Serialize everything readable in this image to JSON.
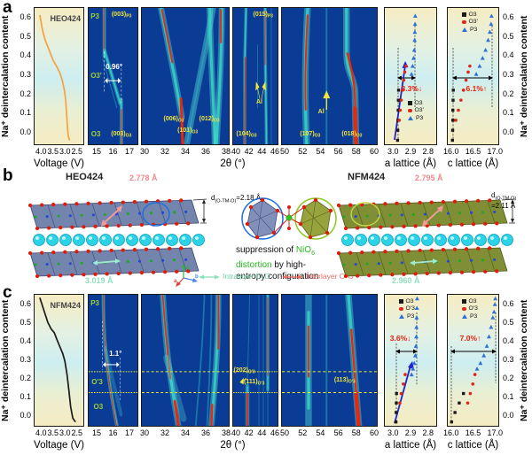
{
  "axis": {
    "na_content": "Na⁺ deintercalation content",
    "voltage": "Voltage (V)",
    "two_theta": "2θ (°)",
    "a_lattice": "a lattice (Å)",
    "c_lattice": "c lattice (Å)"
  },
  "panel_a": {
    "tag": "a",
    "yticks": [
      "0.6",
      "0.5",
      "0.4",
      "0.3",
      "0.2",
      "0.1",
      "0.0"
    ],
    "sample": "HEO424",
    "voltage_ticks": [
      "4.0",
      "3.5",
      "3.0",
      "2.5"
    ],
    "xrd1": {
      "ticks": [
        "15",
        "16",
        "17"
      ],
      "phase_top": "P3",
      "phase_mid": "O3'",
      "phase_bottom": "O3",
      "peak_top_main": "(003)",
      "peak_top_sub": "P3",
      "peak_bottom_main": "(003)",
      "peak_bottom_sub": "O3",
      "angle": "0.96°"
    },
    "xrd2": {
      "ticks": [
        "30",
        "32",
        "34",
        "36",
        "38"
      ],
      "peak1_main": "(006)",
      "peak1_sub": "O3",
      "peak2_main": "(101)",
      "peak2_sub": "O3",
      "peak3_main": "(012)",
      "peak3_sub": "O3"
    },
    "xrd3": {
      "ticks": [
        "40",
        "42",
        "44",
        "46"
      ],
      "peak_top_main": "(015)",
      "peak_top_sub": "P3",
      "al": "Al",
      "peak_bottom_main": "(104)",
      "peak_bottom_sub": "O3"
    },
    "xrd4": {
      "ticks": [
        "50",
        "52",
        "54",
        "56",
        "58",
        "60"
      ],
      "al": "Al",
      "peak_left_main": "(107)",
      "peak_left_sub": "O3",
      "peak_right_main": "(018)",
      "peak_right_sub": "O3"
    },
    "a_lat": {
      "ticks": [
        "3.0",
        "2.9",
        "2.8"
      ],
      "annotation": "3.3%↓",
      "legend": [
        "O3",
        "O3'",
        "P3"
      ]
    },
    "c_lat": {
      "ticks": [
        "16.0",
        "16.5",
        "17.0"
      ],
      "annotation": "6.1%↑",
      "legend": [
        "O3",
        "O3'",
        "P3"
      ]
    }
  },
  "panel_b": {
    "tag": "b",
    "heo": {
      "title": "HEO424",
      "interlayer_oo": "2.778 Å",
      "intralayer_oo": "3.019 Å",
      "d_main": "d",
      "d_sub": "(O-TM-O)",
      "d_val": "=2.18 Å"
    },
    "nfm": {
      "title": "NFM424",
      "interlayer_oo": "2.795 Å",
      "intralayer_oo": "2.960 Å",
      "d_main": "d",
      "d_sub": "(O-TM-O)",
      "d_val": "=2.11 Å"
    },
    "caption": {
      "l1_black": "suppression of ",
      "l1_green": "NiO",
      "l1_green_sub": "6",
      "l2_green": "distortion",
      "l2_black": " by high-",
      "l3": "entropy configuration"
    },
    "legend": {
      "intralayer": "Intralayer O-O",
      "interlayer": "Interlayer O-O"
    },
    "axes": {
      "a": "a",
      "b": "b",
      "c": "c"
    }
  },
  "panel_c": {
    "tag": "c",
    "yticks": [
      "0.6",
      "0.5",
      "0.4",
      "0.3",
      "0.2",
      "0.1",
      "0.0"
    ],
    "sample": "NFM424",
    "voltage_ticks": [
      "4.0",
      "3.5",
      "3.0",
      "2.5"
    ],
    "xrd1": {
      "ticks": [
        "15",
        "16",
        "17"
      ],
      "phase_top": "P3",
      "phase_mid": "O'3",
      "phase_bottom": "O3",
      "angle": "1.1°"
    },
    "xrd2": {
      "ticks": [
        "30",
        "32",
        "34",
        "36",
        "38"
      ]
    },
    "xrd3": {
      "ticks": [
        "40",
        "42",
        "44",
        "46"
      ],
      "peak1_main": "(202)",
      "peak1_sub": "O'3",
      "peak2_main": "(111)",
      "peak2_sub": "O'3"
    },
    "xrd4": {
      "ticks": [
        "50",
        "52",
        "54",
        "56",
        "58",
        "60"
      ],
      "peak_main": "(113)",
      "peak_sub": "O'3"
    },
    "a_lat": {
      "ticks": [
        "3.0",
        "2.9",
        "2.8"
      ],
      "annotation": "3.6%↓",
      "legend": [
        "O3",
        "O'3",
        "P3"
      ]
    },
    "c_lat": {
      "ticks": [
        "16.0",
        "16.5",
        "17.0"
      ],
      "annotation": "7.0%↑",
      "legend": [
        "O3",
        "O'3",
        "P3"
      ]
    }
  },
  "chart_data": [
    {
      "id": "a-voltage",
      "type": "line",
      "title": "HEO424",
      "xlabel": "Voltage (V)",
      "ylabel": "Na⁺ deintercalation content",
      "xlim": [
        4.25,
        2.4
      ],
      "ylim": [
        -0.02,
        0.66
      ],
      "xticks": [
        4.0,
        3.5,
        3.0,
        2.5
      ],
      "yticks": [
        0.0,
        0.1,
        0.2,
        0.3,
        0.4,
        0.5,
        0.6
      ],
      "series": [
        {
          "name": "HEO424 charge curve",
          "color": "#f7a13f",
          "x": [
            4.05,
            3.95,
            3.85,
            3.7,
            3.55,
            3.42,
            3.3,
            3.2,
            3.12,
            3.07,
            3.03,
            3.0,
            2.97,
            2.92
          ],
          "y": [
            0.625,
            0.55,
            0.5,
            0.45,
            0.4,
            0.37,
            0.34,
            0.3,
            0.25,
            0.2,
            0.12,
            0.06,
            0.02,
            0.0
          ]
        }
      ]
    },
    {
      "id": "c-voltage",
      "type": "line",
      "title": "NFM424",
      "xlabel": "Voltage (V)",
      "ylabel": "Na⁺ deintercalation content",
      "xlim": [
        4.25,
        2.4
      ],
      "ylim": [
        -0.02,
        0.67
      ],
      "xticks": [
        4.0,
        3.5,
        3.0,
        2.5
      ],
      "yticks": [
        0.0,
        0.1,
        0.2,
        0.3,
        0.4,
        0.5,
        0.6
      ],
      "series": [
        {
          "name": "NFM424 charge curve",
          "color": "#1a1a1a",
          "x": [
            4.05,
            3.9,
            3.75,
            3.62,
            3.5,
            3.42,
            3.3,
            3.18,
            3.1,
            3.02,
            2.95,
            2.88,
            2.8,
            2.7
          ],
          "y": [
            0.655,
            0.59,
            0.525,
            0.49,
            0.47,
            0.44,
            0.4,
            0.36,
            0.32,
            0.25,
            0.17,
            0.08,
            0.02,
            0.0
          ]
        }
      ]
    },
    {
      "id": "a-xrd-1",
      "type": "heatmap",
      "xlabel": "2θ (°)",
      "xlim": [
        14.8,
        17.3
      ],
      "xticks": [
        15,
        16,
        17
      ],
      "phases": [
        "P3",
        "O3'",
        "O3"
      ],
      "peaks": [
        {
          "label": "(003)P3",
          "two_theta": 15.6
        },
        {
          "label": "(003)O3",
          "two_theta": 16.5
        }
      ],
      "annotation": "0.96°"
    },
    {
      "id": "a-xrd-2",
      "type": "heatmap",
      "xlabel": "2θ (°)",
      "xlim": [
        29.8,
        38.2
      ],
      "xticks": [
        30,
        32,
        34,
        36,
        38
      ],
      "peaks": [
        {
          "label": "(006)O3",
          "two_theta": 33.3
        },
        {
          "label": "(101)O3",
          "two_theta": 34.4
        },
        {
          "label": "(012)O3",
          "two_theta": 36.2
        }
      ]
    },
    {
      "id": "a-xrd-3",
      "type": "heatmap",
      "xlabel": "2θ (°)",
      "xlim": [
        39.8,
        46.3
      ],
      "xticks": [
        40,
        42,
        44,
        46
      ],
      "peaks": [
        {
          "label": "(104)O3",
          "two_theta": 41.3
        },
        {
          "label": "(015)P3",
          "two_theta": 44.6
        }
      ],
      "impurity": "Al"
    },
    {
      "id": "a-xrd-4",
      "type": "heatmap",
      "xlabel": "2θ (°)",
      "xlim": [
        49.8,
        60.4
      ],
      "xticks": [
        50,
        52,
        54,
        56,
        58,
        60
      ],
      "peaks": [
        {
          "label": "(107)O3",
          "two_theta": 52.5
        },
        {
          "label": "(018)O3",
          "two_theta": 57.6
        }
      ],
      "impurity": "Al"
    },
    {
      "id": "c-xrd-1",
      "type": "heatmap",
      "xlabel": "2θ (°)",
      "xlim": [
        14.8,
        17.3
      ],
      "xticks": [
        15,
        16,
        17
      ],
      "phases": [
        "P3",
        "O'3",
        "O3"
      ],
      "peaks": [
        {
          "label": "(003)",
          "two_theta": 15.6
        }
      ],
      "annotation": "1.1°"
    },
    {
      "id": "c-xrd-2",
      "type": "heatmap",
      "xlabel": "2θ (°)",
      "xlim": [
        29.8,
        38.2
      ],
      "xticks": [
        30,
        32,
        34,
        36,
        38
      ]
    },
    {
      "id": "c-xrd-3",
      "type": "heatmap",
      "xlabel": "2θ (°)",
      "xlim": [
        39.8,
        46.3
      ],
      "xticks": [
        40,
        42,
        44,
        46
      ],
      "peaks": [
        {
          "label": "(202)O'3",
          "two_theta": 41.9
        },
        {
          "label": "(111)O'3",
          "two_theta": 43.4
        }
      ]
    },
    {
      "id": "c-xrd-4",
      "type": "heatmap",
      "xlabel": "2θ (°)",
      "xlim": [
        49.8,
        60.4
      ],
      "xticks": [
        50,
        52,
        54,
        56,
        58,
        60
      ],
      "peaks": [
        {
          "label": "(113)O'3",
          "two_theta": 57.2
        }
      ]
    },
    {
      "id": "a-lat-a",
      "type": "scatter",
      "xlabel": "a lattice (Å)",
      "xlim": [
        3.03,
        2.78
      ],
      "ylim": [
        -0.02,
        0.66
      ],
      "xticks": [
        3.0,
        2.9,
        2.8
      ],
      "annotation": "3.3%↓",
      "series": [
        {
          "name": "O3",
          "marker": "square",
          "color": "#1a1a1a",
          "x": [
            2.968,
            2.967,
            2.966,
            2.965,
            2.964,
            2.963
          ],
          "y": [
            0.0,
            0.05,
            0.1,
            0.15,
            0.2,
            0.25
          ]
        },
        {
          "name": "O3'",
          "marker": "circle",
          "color": "#e0251a",
          "x": [
            2.96,
            2.955,
            2.95,
            2.944,
            2.938,
            2.933,
            2.928
          ],
          "y": [
            0.1,
            0.15,
            0.2,
            0.25,
            0.3,
            0.34,
            0.37
          ]
        },
        {
          "name": "P3",
          "marker": "triangle",
          "color": "#2f6fd8",
          "x": [
            2.9,
            2.895,
            2.89,
            2.887,
            2.885,
            2.884,
            2.883,
            2.882
          ],
          "y": [
            0.33,
            0.37,
            0.41,
            0.45,
            0.5,
            0.54,
            0.58,
            0.62
          ]
        }
      ]
    },
    {
      "id": "a-lat-c",
      "type": "scatter",
      "xlabel": "c lattice (Å)",
      "xlim": [
        15.93,
        17.12
      ],
      "ylim": [
        -0.02,
        0.66
      ],
      "xticks": [
        16.0,
        16.5,
        17.0
      ],
      "annotation": "6.1%↑",
      "series": [
        {
          "name": "O3",
          "marker": "square",
          "color": "#1a1a1a",
          "x": [
            16.04,
            16.045,
            16.05,
            16.05,
            16.055,
            16.06
          ],
          "y": [
            0.0,
            0.05,
            0.1,
            0.15,
            0.2,
            0.25
          ]
        },
        {
          "name": "O3'",
          "marker": "circle",
          "color": "#e0251a",
          "x": [
            16.12,
            16.18,
            16.24,
            16.3,
            16.36,
            16.41,
            16.45
          ],
          "y": [
            0.1,
            0.15,
            0.2,
            0.25,
            0.3,
            0.34,
            0.37
          ]
        },
        {
          "name": "P3",
          "marker": "triangle",
          "color": "#2f6fd8",
          "x": [
            16.6,
            16.68,
            16.75,
            16.82,
            16.88,
            16.92,
            16.95,
            16.96
          ],
          "y": [
            0.33,
            0.37,
            0.41,
            0.45,
            0.5,
            0.54,
            0.58,
            0.62
          ]
        }
      ]
    },
    {
      "id": "c-lat-a",
      "type": "scatter",
      "xlabel": "a lattice (Å)",
      "xlim": [
        3.03,
        2.78
      ],
      "ylim": [
        -0.02,
        0.67
      ],
      "xticks": [
        3.0,
        2.9,
        2.8
      ],
      "annotation": "3.6%↓",
      "series": [
        {
          "name": "O3",
          "marker": "square",
          "color": "#1a1a1a",
          "x": [
            2.976,
            2.975,
            2.974,
            2.973
          ],
          "y": [
            0.0,
            0.05,
            0.1,
            0.15
          ]
        },
        {
          "name": "O'3",
          "marker": "circle",
          "color": "#e0251a",
          "x": [
            2.957,
            2.95,
            2.94,
            2.931
          ],
          "y": [
            0.1,
            0.15,
            0.2,
            0.25
          ]
        },
        {
          "name": "P3",
          "marker": "triangle",
          "color": "#2f6fd8",
          "x": [
            2.9,
            2.893,
            2.887,
            2.882,
            2.879,
            2.877,
            2.876,
            2.875,
            2.874,
            2.873
          ],
          "y": [
            0.25,
            0.28,
            0.31,
            0.35,
            0.4,
            0.45,
            0.5,
            0.55,
            0.6,
            0.65
          ]
        }
      ]
    },
    {
      "id": "c-lat-c",
      "type": "scatter",
      "xlabel": "c lattice (Å)",
      "xlim": [
        15.93,
        17.12
      ],
      "ylim": [
        -0.02,
        0.67
      ],
      "xticks": [
        16.0,
        16.5,
        17.0
      ],
      "annotation": "7.0%↑",
      "series": [
        {
          "name": "O3",
          "marker": "square",
          "color": "#1a1a1a",
          "x": [
            16.02,
            16.1,
            16.2,
            16.3
          ],
          "y": [
            0.0,
            0.05,
            0.1,
            0.15
          ]
        },
        {
          "name": "O'3",
          "marker": "circle",
          "color": "#e0251a",
          "x": [
            16.4,
            16.46,
            16.52,
            16.57
          ],
          "y": [
            0.1,
            0.15,
            0.2,
            0.25
          ]
        },
        {
          "name": "P3",
          "marker": "triangle",
          "color": "#2f6fd8",
          "x": [
            16.62,
            16.7,
            16.78,
            16.85,
            16.9,
            16.95,
            16.99,
            17.02,
            17.04,
            17.05
          ],
          "y": [
            0.28,
            0.31,
            0.35,
            0.4,
            0.45,
            0.5,
            0.55,
            0.58,
            0.62,
            0.65
          ]
        }
      ]
    }
  ]
}
